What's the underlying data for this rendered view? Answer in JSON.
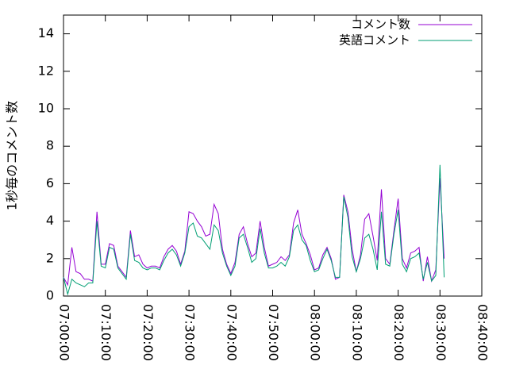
{
  "chart_data": {
    "type": "line",
    "y_label": "1秒毎のコメント数",
    "x": [
      "07:00:00",
      "07:01:00",
      "07:02:00",
      "07:03:00",
      "07:04:00",
      "07:05:00",
      "07:06:00",
      "07:07:00",
      "07:08:00",
      "07:09:00",
      "07:10:00",
      "07:11:00",
      "07:12:00",
      "07:13:00",
      "07:14:00",
      "07:15:00",
      "07:16:00",
      "07:17:00",
      "07:18:00",
      "07:19:00",
      "07:20:00",
      "07:21:00",
      "07:22:00",
      "07:23:00",
      "07:24:00",
      "07:25:00",
      "07:26:00",
      "07:27:00",
      "07:28:00",
      "07:29:00",
      "07:30:00",
      "07:31:00",
      "07:32:00",
      "07:33:00",
      "07:34:00",
      "07:35:00",
      "07:36:00",
      "07:37:00",
      "07:38:00",
      "07:39:00",
      "07:40:00",
      "07:41:00",
      "07:42:00",
      "07:43:00",
      "07:44:00",
      "07:45:00",
      "07:46:00",
      "07:47:00",
      "07:48:00",
      "07:49:00",
      "07:50:00",
      "07:51:00",
      "07:52:00",
      "07:53:00",
      "07:54:00",
      "07:55:00",
      "07:56:00",
      "07:57:00",
      "07:58:00",
      "07:59:00",
      "08:00:00",
      "08:01:00",
      "08:02:00",
      "08:03:00",
      "08:04:00",
      "08:05:00",
      "08:06:00",
      "08:07:00",
      "08:08:00",
      "08:09:00",
      "08:10:00",
      "08:11:00",
      "08:12:00",
      "08:13:00",
      "08:14:00",
      "08:15:00",
      "08:16:00",
      "08:17:00",
      "08:18:00",
      "08:19:00",
      "08:20:00",
      "08:21:00",
      "08:22:00",
      "08:23:00",
      "08:24:00",
      "08:25:00",
      "08:26:00",
      "08:27:00",
      "08:28:00",
      "08:29:00",
      "08:30:00",
      "08:31:00"
    ],
    "series": [
      {
        "name": "コメント数",
        "color": "#9400d3",
        "values": [
          1.0,
          0.6,
          2.6,
          1.3,
          1.2,
          0.9,
          0.9,
          0.8,
          4.5,
          1.7,
          1.7,
          2.8,
          2.7,
          1.6,
          1.3,
          1.0,
          3.5,
          2.1,
          2.2,
          1.7,
          1.5,
          1.6,
          1.6,
          1.5,
          2.1,
          2.5,
          2.7,
          2.4,
          1.7,
          2.4,
          4.5,
          4.4,
          4.0,
          3.7,
          3.2,
          3.3,
          4.9,
          4.4,
          2.5,
          1.7,
          1.2,
          1.8,
          3.3,
          3.7,
          2.8,
          2.1,
          2.3,
          4.0,
          2.6,
          1.6,
          1.7,
          1.8,
          2.1,
          1.9,
          2.2,
          3.9,
          4.6,
          3.3,
          2.8,
          2.2,
          1.4,
          1.5,
          2.2,
          2.6,
          2.0,
          0.9,
          1.0,
          5.4,
          4.5,
          2.5,
          1.3,
          2.2,
          4.1,
          4.4,
          3.2,
          1.9,
          5.7,
          2.0,
          1.7,
          3.5,
          5.2,
          2.0,
          1.5,
          2.3,
          2.4,
          2.6,
          0.8,
          2.1,
          0.8,
          1.4,
          6.3,
          2.0
        ]
      },
      {
        "name": "英語コメント",
        "color": "#009e73",
        "values": [
          1.0,
          0.1,
          0.9,
          0.7,
          0.6,
          0.5,
          0.7,
          0.7,
          4.0,
          1.6,
          1.5,
          2.6,
          2.5,
          1.5,
          1.2,
          0.9,
          3.3,
          1.9,
          1.8,
          1.5,
          1.4,
          1.5,
          1.5,
          1.4,
          1.9,
          2.3,
          2.5,
          2.2,
          1.6,
          2.3,
          3.7,
          3.9,
          3.2,
          3.1,
          2.8,
          2.5,
          3.8,
          3.5,
          2.3,
          1.6,
          1.1,
          1.6,
          3.1,
          3.3,
          2.6,
          1.8,
          2.0,
          3.6,
          2.3,
          1.5,
          1.5,
          1.6,
          1.8,
          1.6,
          2.1,
          3.5,
          3.8,
          3.0,
          2.7,
          1.9,
          1.3,
          1.4,
          2.0,
          2.5,
          1.9,
          1.0,
          1.0,
          5.3,
          4.2,
          2.1,
          1.3,
          2.0,
          3.1,
          3.3,
          2.5,
          1.4,
          4.5,
          1.7,
          1.6,
          3.3,
          4.6,
          1.7,
          1.3,
          2.0,
          2.1,
          2.3,
          0.9,
          1.8,
          0.8,
          1.1,
          7.0,
          1.0
        ]
      }
    ],
    "xlim": [
      "07:00:00",
      "08:40:00"
    ],
    "xticks": [
      "07:00:00",
      "07:10:00",
      "07:20:00",
      "07:30:00",
      "07:40:00",
      "07:50:00",
      "08:00:00",
      "08:10:00",
      "08:20:00",
      "08:30:00",
      "08:40:00"
    ],
    "ylim": [
      0,
      15
    ],
    "yticks": [
      0,
      2,
      4,
      6,
      8,
      10,
      12,
      14
    ],
    "legend": "top-right"
  }
}
